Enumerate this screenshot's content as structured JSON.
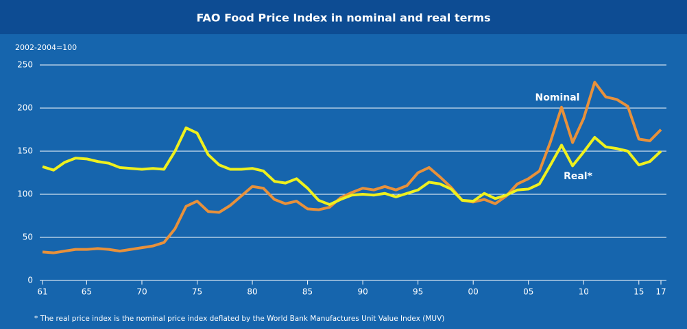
{
  "chart_data": {
    "type": "line",
    "title": "FAO Food Price Index in nominal and real terms",
    "y_axis_label": "2002-2004=100",
    "footnote": "* The real price index is the nominal price index deflated by the World Bank Manufactures Unit Value Index (MUV)",
    "x": [
      1961,
      1962,
      1963,
      1964,
      1965,
      1966,
      1967,
      1968,
      1969,
      1970,
      1971,
      1972,
      1973,
      1974,
      1975,
      1976,
      1977,
      1978,
      1979,
      1980,
      1981,
      1982,
      1983,
      1984,
      1985,
      1986,
      1987,
      1988,
      1989,
      1990,
      1991,
      1992,
      1993,
      1994,
      1995,
      1996,
      1997,
      1998,
      1999,
      2000,
      2001,
      2002,
      2003,
      2004,
      2005,
      2006,
      2007,
      2008,
      2009,
      2010,
      2011,
      2012,
      2013,
      2014,
      2015,
      2016,
      2017
    ],
    "series": [
      {
        "name": "Nominal",
        "color": "#e8913b",
        "values": [
          33,
          32,
          34,
          36,
          36,
          37,
          36,
          34,
          36,
          38,
          40,
          44,
          60,
          86,
          92,
          80,
          79,
          87,
          98,
          109,
          107,
          94,
          89,
          92,
          83,
          82,
          85,
          96,
          102,
          107,
          105,
          109,
          105,
          110,
          125,
          131,
          120,
          108,
          93,
          91,
          94,
          89,
          98,
          112,
          118,
          127,
          161,
          201,
          160,
          188,
          230,
          213,
          210,
          202,
          164,
          162,
          175
        ]
      },
      {
        "name": "Real*",
        "color": "#eef01e",
        "values": [
          132,
          128,
          137,
          142,
          141,
          138,
          136,
          131,
          130,
          129,
          130,
          129,
          150,
          177,
          171,
          146,
          134,
          129,
          129,
          130,
          127,
          115,
          113,
          118,
          107,
          93,
          88,
          94,
          99,
          100,
          99,
          101,
          97,
          101,
          105,
          114,
          112,
          106,
          93,
          92,
          101,
          95,
          99,
          105,
          106,
          112,
          134,
          157,
          133,
          149,
          166,
          155,
          153,
          150,
          134,
          138,
          150
        ]
      }
    ],
    "xlim": [
      1961,
      2017
    ],
    "xticks": [
      {
        "value": 1961,
        "label": "61"
      },
      {
        "value": 1965,
        "label": "65"
      },
      {
        "value": 1970,
        "label": "70"
      },
      {
        "value": 1975,
        "label": "75"
      },
      {
        "value": 1980,
        "label": "80"
      },
      {
        "value": 1985,
        "label": "85"
      },
      {
        "value": 1990,
        "label": "90"
      },
      {
        "value": 1995,
        "label": "95"
      },
      {
        "value": 2000,
        "label": "00"
      },
      {
        "value": 2005,
        "label": "05"
      },
      {
        "value": 2010,
        "label": "10"
      },
      {
        "value": 2015,
        "label": "15"
      },
      {
        "value": 2017,
        "label": "17"
      }
    ],
    "ylim": [
      0,
      250
    ],
    "yticks": [
      0,
      50,
      100,
      150,
      200,
      250
    ],
    "grid": true
  }
}
